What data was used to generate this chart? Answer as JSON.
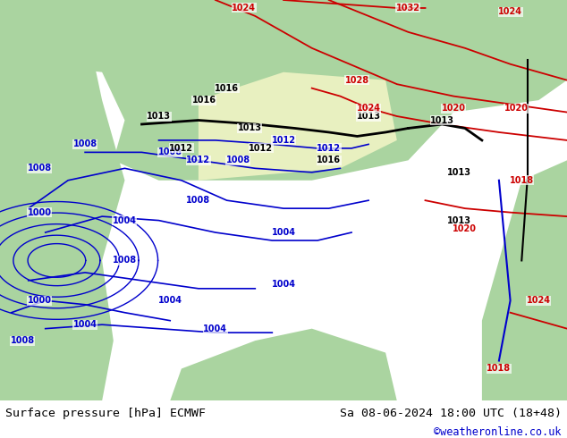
{
  "title_left": "Surface pressure [hPa] ECMWF",
  "title_right": "Sa 08-06-2024 18:00 UTC (18+48)",
  "credit": "©weatheronline.co.uk",
  "credit_color": "#0000cc",
  "bg_color": "#d8d8d8",
  "map_bg_color": "#c8c8c8",
  "bottom_bar_color": "#ffffff",
  "fig_width": 6.34,
  "fig_height": 4.9,
  "dpi": 100,
  "bottom_bar_height": 0.085,
  "text_fontsize": 9.5,
  "credit_fontsize": 8.5,
  "label_fontsize": 7,
  "label_color": "#000000",
  "contour_blue_color": "#0000cc",
  "contour_red_color": "#cc0000",
  "contour_black_color": "#000000",
  "land_color": "#aad4a0",
  "sea_color": "#c8d8e8",
  "highlight_color": "#e8f0c0"
}
